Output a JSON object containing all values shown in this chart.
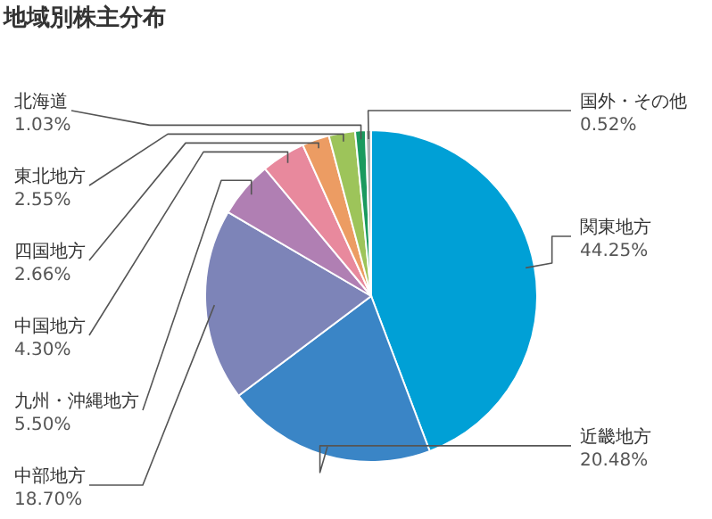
{
  "chart_data": {
    "type": "pie",
    "title": "地域別株主分布",
    "categories": [
      "関東地方",
      "近畿地方",
      "中部地方",
      "九州・沖縄地方",
      "中国地方",
      "四国地方",
      "東北地方",
      "北海道",
      "国外・その他"
    ],
    "values": [
      44.25,
      20.48,
      18.7,
      5.5,
      4.3,
      2.66,
      2.55,
      1.03,
      0.52
    ],
    "value_labels": [
      "44.25%",
      "20.48%",
      "18.70%",
      "5.50%",
      "4.30%",
      "2.66%",
      "2.55%",
      "1.03%",
      "0.52%"
    ],
    "colors": [
      "#00a0d6",
      "#3a85c6",
      "#7d84b8",
      "#b07fb3",
      "#e8899d",
      "#ec9c63",
      "#9dc45a",
      "#1a9a5e",
      "#b0b0b0"
    ],
    "legend": false
  }
}
